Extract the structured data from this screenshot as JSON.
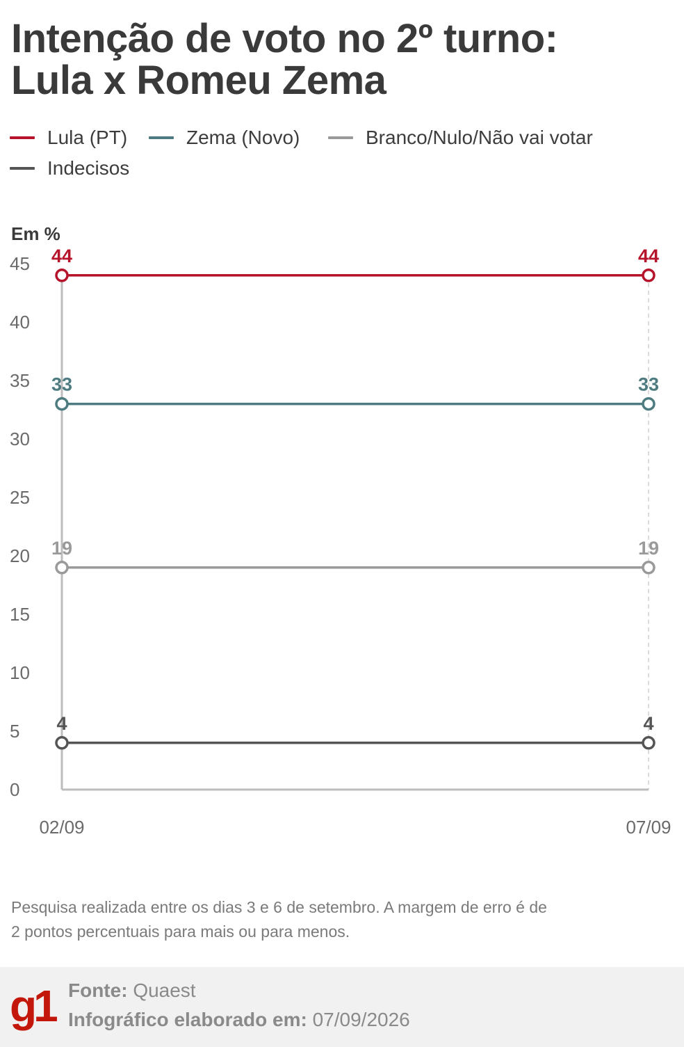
{
  "title": "Intenção de voto no 2º turno: Lula x Romeu Zema",
  "legend": [
    {
      "label": "Lula (PT)",
      "color": "#b5142b"
    },
    {
      "label": "Zema (Novo)",
      "color": "#4e7b80"
    },
    {
      "label": "Branco/Nulo/Não vai votar",
      "color": "#9a9a9a"
    },
    {
      "label": "Indecisos",
      "color": "#555555"
    }
  ],
  "chart_data": {
    "type": "line",
    "ylabel": "Em %",
    "xlabel": "",
    "x": [
      "02/09",
      "07/09"
    ],
    "ylim": [
      0,
      45
    ],
    "yticks": [
      "0",
      "5",
      "10",
      "15",
      "20",
      "25",
      "30",
      "35",
      "40",
      "45"
    ],
    "grid": false,
    "series": [
      {
        "name": "Lula (PT)",
        "values": [
          44,
          44
        ],
        "color": "#b5142b"
      },
      {
        "name": "Zema (Novo)",
        "values": [
          33,
          33
        ],
        "color": "#4e7b80"
      },
      {
        "name": "Branco/Nulo/Não vai votar",
        "values": [
          19,
          19
        ],
        "color": "#9a9a9a"
      },
      {
        "name": "Indecisos",
        "values": [
          4,
          4
        ],
        "color": "#555555"
      }
    ]
  },
  "note": "Pesquisa realizada entre os dias 3 e 6 de setembro. A margem de erro é de 2 pontos percentuais para mais ou para menos.",
  "footer": {
    "logo": "g1",
    "source_label": "Fonte:",
    "source_value": "Quaest",
    "date_label": "Infográfico elaborado em:",
    "date_value": "07/09/2026"
  }
}
